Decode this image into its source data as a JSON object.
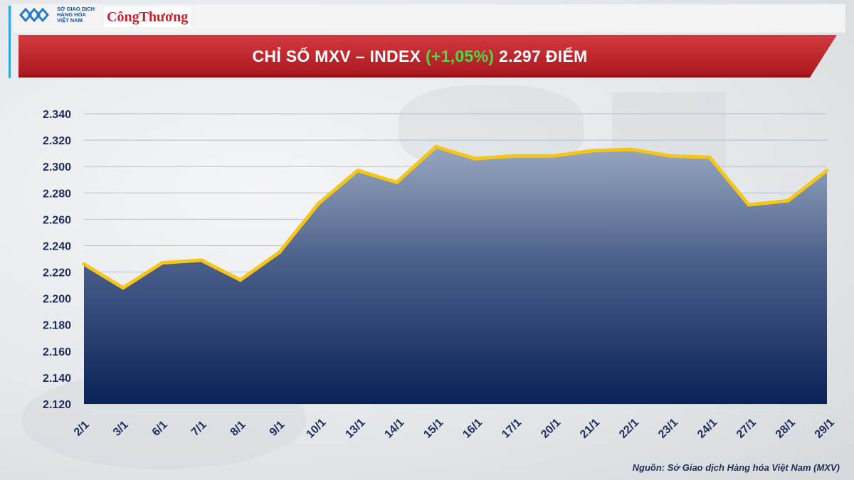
{
  "header": {
    "mxv_logo_lines": [
      "SỞ GIAO DỊCH",
      "HÀNG HÓA",
      "VIỆT NAM"
    ],
    "brand": "CôngThương",
    "title_main": "CHỈ SỐ MXV – INDEX",
    "title_change": "(+1,05%)",
    "title_value": "2.297 ĐIỂM"
  },
  "colors": {
    "banner": "#c6252c",
    "line": "#f5c518",
    "area_top": "#8c9cb8",
    "area_bottom": "#0c2459",
    "change": "#4cd948",
    "tick_text": "#1f2d5a"
  },
  "chart_data": {
    "type": "area",
    "title": "CHỈ SỐ MXV – INDEX (+1,05%) 2.297 ĐIỂM",
    "xlabel": "",
    "ylabel": "",
    "ylim": [
      2120,
      2340
    ],
    "yticks": [
      2340,
      2320,
      2300,
      2280,
      2260,
      2240,
      2220,
      2200,
      2180,
      2160,
      2140,
      2120
    ],
    "ytick_labels": [
      "2.340",
      "2.320",
      "2.300",
      "2.280",
      "2.260",
      "2.240",
      "2.220",
      "2.200",
      "2.180",
      "2.160",
      "2.140",
      "2.120"
    ],
    "grid": true,
    "categories": [
      "2/1",
      "3/1",
      "6/1",
      "7/1",
      "8/1",
      "9/1",
      "10/1",
      "13/1",
      "14/1",
      "15/1",
      "16/1",
      "17/1",
      "20/1",
      "21/1",
      "22/1",
      "23/1",
      "24/1",
      "27/1",
      "28/1",
      "29/1"
    ],
    "values": [
      2226,
      2208,
      2227,
      2229,
      2214,
      2235,
      2272,
      2297,
      2288,
      2315,
      2306,
      2308,
      2308,
      2312,
      2313,
      2308,
      2307,
      2271,
      2274,
      2297
    ]
  },
  "footer": {
    "source": "Nguồn: Sở Giao dịch Hàng hóa Việt Nam (MXV)"
  }
}
